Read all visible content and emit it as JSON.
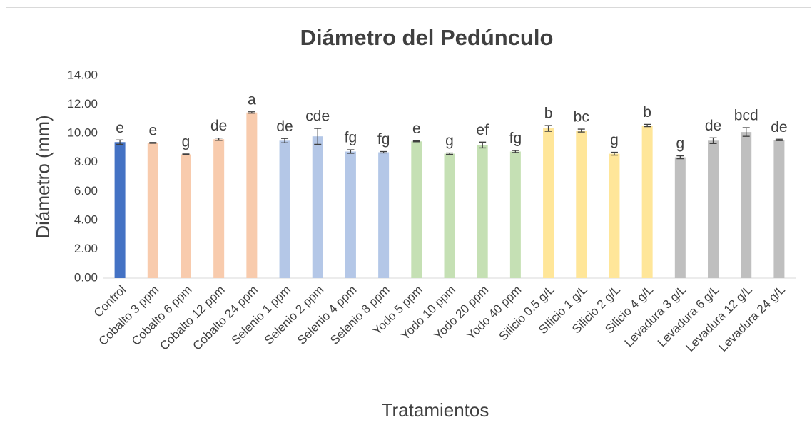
{
  "chart_data": {
    "type": "bar",
    "title": "Diámetro del Pedúnculo",
    "xlabel": "Tratamientos",
    "ylabel": "Diámetro (mm)",
    "categories": [
      "Control",
      "Cobalto 3 ppm",
      "Cobalto 6 ppm",
      "Cobalto 12 ppm",
      "Cobalto 24 ppm",
      "Selenio 1 ppm",
      "Selenio 2 ppm",
      "Selenio 4 ppm",
      "Selenio 8 ppm",
      "Yodo 5 ppm",
      "Yodo 10 ppm",
      "Yodo 20 ppm",
      "Yodo 40 ppm",
      "Silicio 0.5 g/L",
      "SIlicio 1 g/L",
      "Silicio 2 g/L",
      "Silicio 4 g/L",
      "Levadura 3 g/L",
      "Levadura 6 g/L",
      "Levadura 12 g/L",
      "Levadura 24 g/L"
    ],
    "values": [
      9.4,
      9.35,
      8.55,
      9.6,
      11.45,
      9.5,
      9.8,
      8.75,
      8.7,
      9.45,
      8.6,
      9.2,
      8.75,
      10.35,
      10.2,
      8.6,
      10.55,
      8.35,
      9.5,
      10.1,
      9.55
    ],
    "errors": [
      0.15,
      0.03,
      0.03,
      0.08,
      0.05,
      0.15,
      0.55,
      0.12,
      0.05,
      0.03,
      0.05,
      0.2,
      0.07,
      0.2,
      0.1,
      0.1,
      0.08,
      0.1,
      0.2,
      0.3,
      0.05
    ],
    "annotations": [
      "e",
      "e",
      "g",
      "de",
      "a",
      "de",
      "cde",
      "fg",
      "fg",
      "e",
      "g",
      "ef",
      "fg",
      "b",
      "bc",
      "g",
      "b",
      "g",
      "de",
      "bcd",
      "de"
    ],
    "colors": [
      "#4472c4",
      "#f8cbad",
      "#f8cbad",
      "#f8cbad",
      "#f8cbad",
      "#b4c7e7",
      "#b4c7e7",
      "#b4c7e7",
      "#b4c7e7",
      "#c5e0b4",
      "#c5e0b4",
      "#c5e0b4",
      "#c5e0b4",
      "#ffe699",
      "#ffe699",
      "#ffe699",
      "#ffe699",
      "#bfbfbf",
      "#bfbfbf",
      "#bfbfbf",
      "#bfbfbf"
    ],
    "ylim": [
      0,
      14
    ],
    "yticks": [
      {
        "value": 0,
        "label": "0.00"
      },
      {
        "value": 2,
        "label": "2.00"
      },
      {
        "value": 4,
        "label": "4.00"
      },
      {
        "value": 6,
        "label": "6.00"
      },
      {
        "value": 8,
        "label": "8.00"
      },
      {
        "value": 10,
        "label": "10.00"
      },
      {
        "value": 12,
        "label": "12.00"
      },
      {
        "value": 14,
        "label": "14.00"
      }
    ],
    "grid": false
  }
}
